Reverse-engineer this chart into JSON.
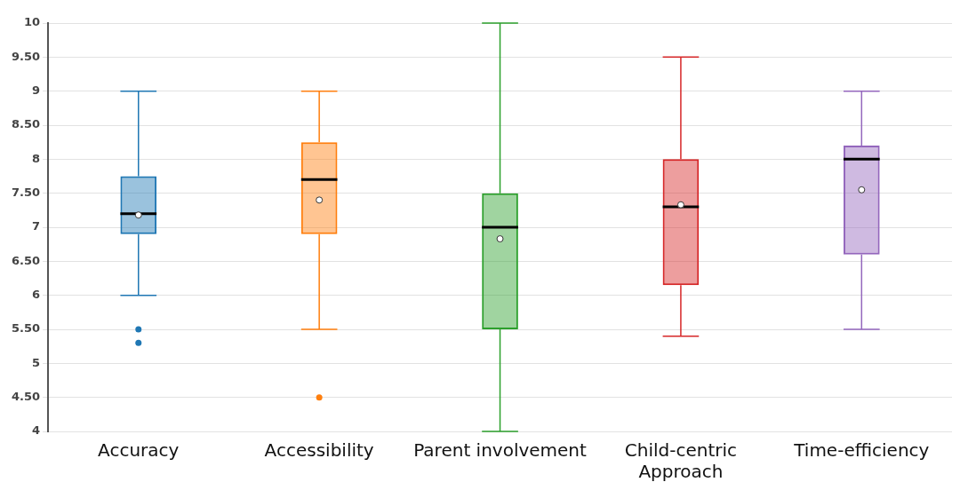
{
  "chart_data": {
    "type": "box",
    "categories": [
      "Accuracy",
      "Accessibility",
      "Parent involvement",
      "Child-centric Approach",
      "Time-efficiency"
    ],
    "colors": [
      "#1f77b4",
      "#ff7f0e",
      "#2ca02c",
      "#d62728",
      "#9467bd"
    ],
    "boxes": [
      {
        "low": 6,
        "q1": 6.9,
        "median": 7.2,
        "q3": 7.75,
        "high": 9,
        "mean": 7.18,
        "outliers": [
          5.5,
          5.3
        ]
      },
      {
        "low": 5.5,
        "q1": 6.9,
        "median": 7.7,
        "q3": 8.25,
        "high": 9,
        "mean": 7.4,
        "outliers": [
          4.5
        ]
      },
      {
        "low": 4,
        "q1": 5.5,
        "median": 7,
        "q3": 7.5,
        "high": 10,
        "mean": 6.83
      },
      {
        "low": 5.4,
        "q1": 6.15,
        "median": 7.3,
        "q3": 8,
        "high": 9.5,
        "mean": 7.33
      },
      {
        "low": 5.5,
        "q1": 6.6,
        "median": 8,
        "q3": 8.2,
        "high": 9,
        "mean": 7.55
      }
    ],
    "ylim": [
      4,
      10
    ],
    "yticks": [
      4,
      {
        "value": 4.5,
        "label": "4.50"
      },
      5,
      {
        "value": 5.5,
        "label": "5.50"
      },
      6,
      {
        "value": 6.5,
        "label": "6.50"
      },
      7,
      {
        "value": 7.5,
        "label": "7.50"
      },
      8,
      {
        "value": 8.5,
        "label": "8.50"
      },
      9,
      {
        "value": 9.5,
        "label": "9.50"
      },
      10
    ],
    "grid": "y"
  }
}
